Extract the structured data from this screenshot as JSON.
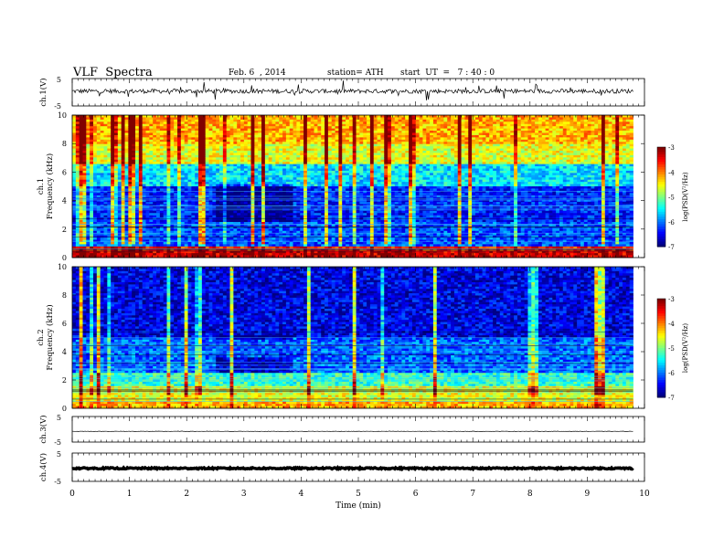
{
  "header": {
    "title": "VLF  Spectra",
    "date": "Feb. 6  , 2014",
    "station": "station= ATH",
    "start": "start  UT  =   7 : 40 : 0"
  },
  "chart_data": {
    "type": "heatmap",
    "xlabel": "Time  (min)",
    "x_range": [
      0,
      10
    ],
    "x_ticks": [
      "0",
      "1",
      "2",
      "3",
      "4",
      "5",
      "6",
      "7",
      "8",
      "9",
      "10"
    ],
    "data_end_min": 9.8,
    "panels": [
      {
        "kind": "waveform",
        "ylabel": "ch.1(V)",
        "ylim": [
          -5,
          5
        ],
        "yticks": [
          "5",
          "-5"
        ]
      },
      {
        "kind": "spectrogram",
        "ylabel": "ch.1\nFrequency (kHz)",
        "ylim": [
          0,
          10
        ],
        "yticks": [
          "0",
          "2",
          "4",
          "6",
          "8",
          "10"
        ],
        "colorbar": {
          "label": "log(PSD(V²/Hz)",
          "range": [
            -7,
            -3
          ],
          "ticks": [
            "-3",
            "-4",
            "-5",
            "-6",
            "-7"
          ]
        },
        "band_levels_psd_log": [
          {
            "f_khz": [
              0.0,
              0.4
            ],
            "level": -3.3
          },
          {
            "f_khz": [
              0.4,
              0.8
            ],
            "level": -3.6
          },
          {
            "f_khz": [
              0.8,
              2.5
            ],
            "level": -6.2
          },
          {
            "f_khz": [
              2.5,
              5.0
            ],
            "level": -6.4
          },
          {
            "f_khz": [
              5.0,
              6.5
            ],
            "level": -5.6
          },
          {
            "f_khz": [
              6.5,
              8.0
            ],
            "level": -4.6
          },
          {
            "f_khz": [
              8.0,
              10.0
            ],
            "level": -4.2
          }
        ]
      },
      {
        "kind": "spectrogram",
        "ylabel": "ch.2\nFrequency (kHz)",
        "ylim": [
          0,
          10
        ],
        "yticks": [
          "0",
          "2",
          "4",
          "6",
          "8",
          "10"
        ],
        "colorbar": {
          "label": "log(PSD(V²/Hz)",
          "range": [
            -7,
            -3
          ],
          "ticks": [
            "-3",
            "-4",
            "-5",
            "-6",
            "-7"
          ]
        },
        "band_levels_psd_log": [
          {
            "f_khz": [
              0.0,
              0.5
            ],
            "level": -4.2
          },
          {
            "f_khz": [
              0.5,
              1.5
            ],
            "level": -4.6
          },
          {
            "f_khz": [
              1.5,
              2.5
            ],
            "level": -5.3
          },
          {
            "f_khz": [
              2.5,
              5.0
            ],
            "level": -6.1
          },
          {
            "f_khz": [
              5.0,
              10.0
            ],
            "level": -6.6
          }
        ]
      },
      {
        "kind": "waveform",
        "ylabel": "ch.3(V)",
        "ylim": [
          -5,
          5
        ],
        "yticks": [
          "5",
          "-5"
        ]
      },
      {
        "kind": "waveform",
        "ylabel": "ch.4(V)",
        "ylim": [
          -5,
          5
        ],
        "yticks": [
          "5",
          "-5"
        ]
      }
    ]
  }
}
